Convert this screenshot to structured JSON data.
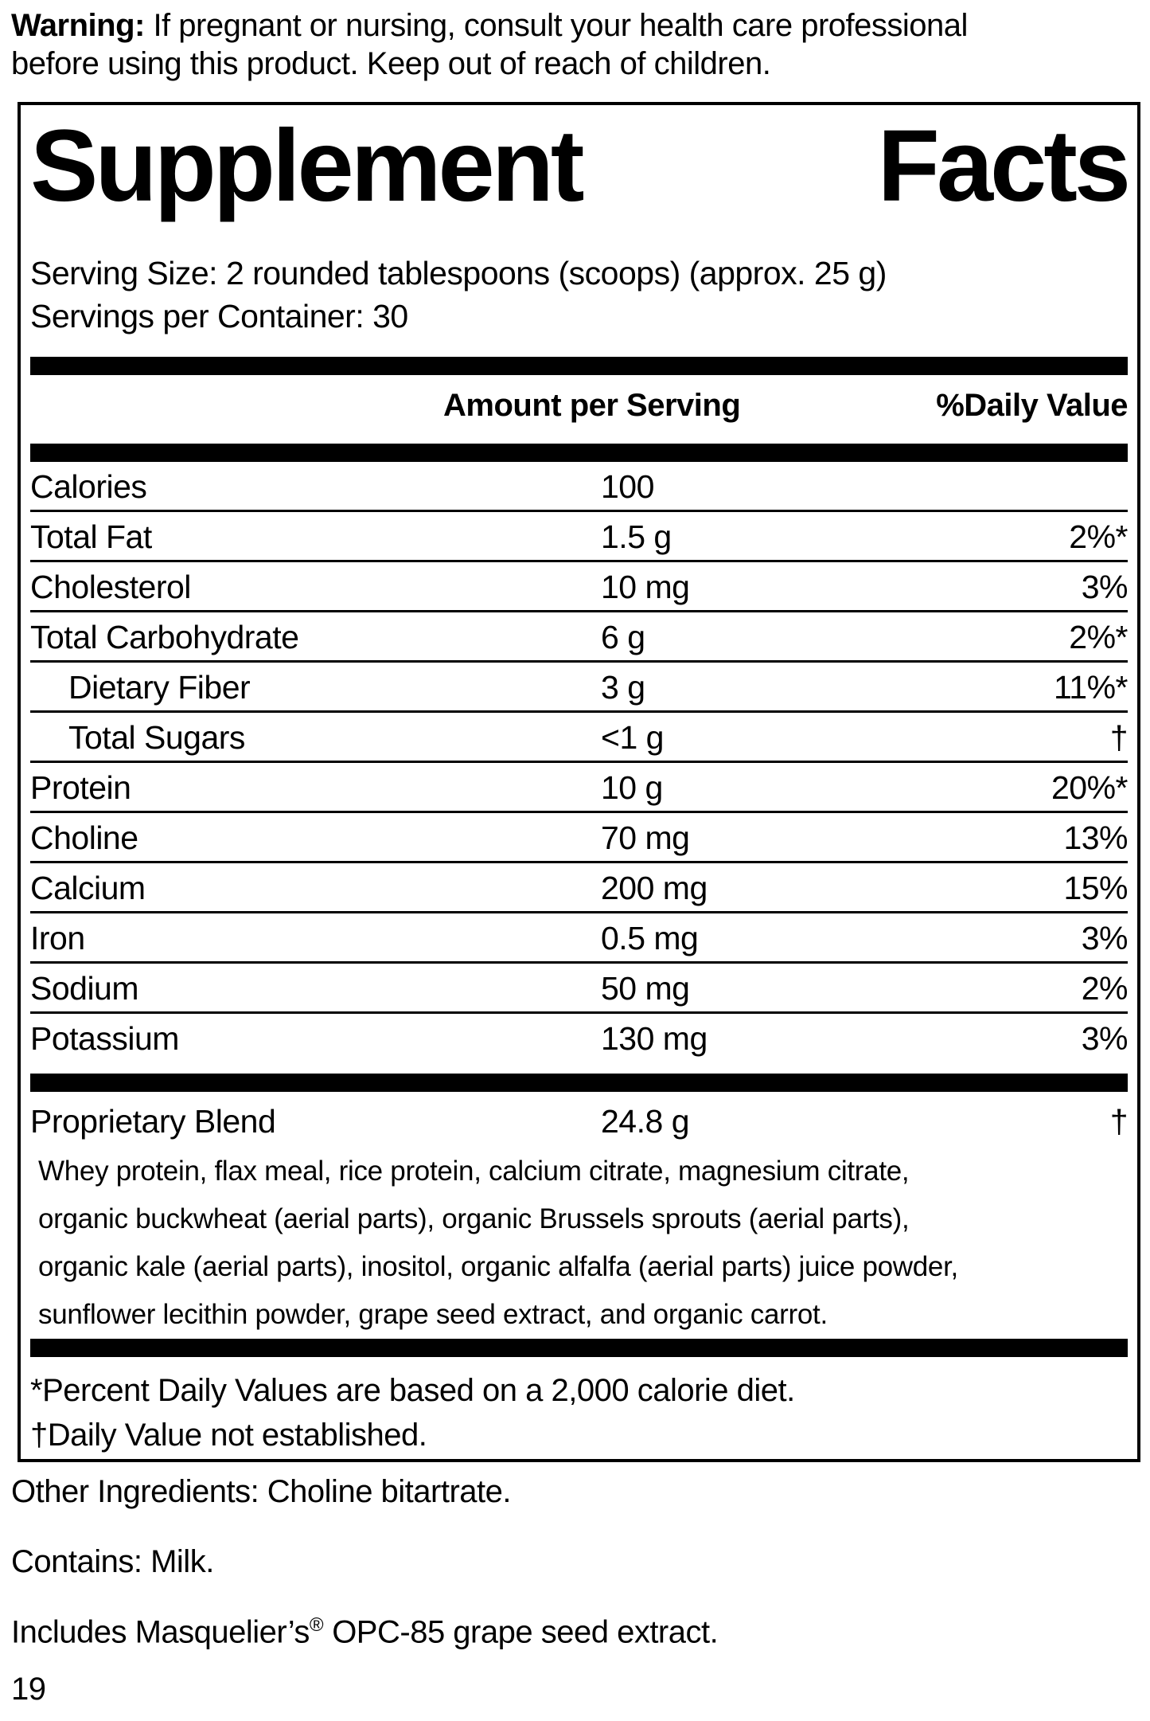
{
  "warning": {
    "bold_label": "Warning:",
    "line1_rest": " If pregnant or nursing, consult your health care professional",
    "line2": "before using this product. Keep out of reach of children."
  },
  "label": {
    "title_left": "Supplement",
    "title_right": "Facts",
    "serving_size": "Serving Size: 2 rounded tablespoons (scoops) (approx. 25 g)",
    "servings_per_container": "Servings per Container: 30",
    "columns": {
      "amount": "Amount per Serving",
      "daily_value": "%Daily Value"
    },
    "rows": [
      {
        "name": "Calories",
        "amount": "100",
        "daily_value": "",
        "indent": false
      },
      {
        "name": "Total Fat",
        "amount": "1.5 g",
        "daily_value": "2%*",
        "indent": false
      },
      {
        "name": "Cholesterol",
        "amount": "10 mg",
        "daily_value": "3%",
        "indent": false
      },
      {
        "name": "Total Carbohydrate",
        "amount": "6 g",
        "daily_value": "2%*",
        "indent": false
      },
      {
        "name": "Dietary Fiber",
        "amount": "3 g",
        "daily_value": "11%*",
        "indent": true
      },
      {
        "name": "Total Sugars",
        "amount": "<1 g",
        "daily_value": "†",
        "indent": true
      },
      {
        "name": "Protein",
        "amount": "10 g",
        "daily_value": "20%*",
        "indent": false
      },
      {
        "name": "Choline",
        "amount": "70 mg",
        "daily_value": "13%",
        "indent": false
      },
      {
        "name": "Calcium",
        "amount": "200 mg",
        "daily_value": "15%",
        "indent": false
      },
      {
        "name": "Iron",
        "amount": "0.5 mg",
        "daily_value": "3%",
        "indent": false
      },
      {
        "name": "Sodium",
        "amount": "50 mg",
        "daily_value": "2%",
        "indent": false
      },
      {
        "name": "Potassium",
        "amount": "130 mg",
        "daily_value": "3%",
        "indent": false
      }
    ],
    "proprietary_blend": {
      "name": "Proprietary Blend",
      "amount": "24.8 g",
      "daily_value": "†",
      "description_lines": [
        "Whey protein, flax meal, rice protein, calcium citrate, magnesium citrate,",
        "organic buckwheat (aerial parts), organic Brussels sprouts (aerial parts),",
        "organic kale (aerial parts), inositol, organic alfalfa (aerial parts) juice powder,",
        "sunflower lecithin powder, grape seed extract, and organic carrot."
      ]
    },
    "footnotes": [
      "*Percent Daily Values are based on a 2,000 calorie diet.",
      "†Daily Value not established."
    ]
  },
  "other_info": {
    "other_ingredients": "Other Ingredients: Choline bitartrate.",
    "contains": "Contains: Milk.",
    "includes_prefix": "Includes Masquelier’s",
    "registered_mark": "®",
    "includes_suffix": " OPC-85 grape seed extract.",
    "page_number": "19"
  },
  "colors": {
    "ink": "#000000",
    "paper": "#ffffff"
  }
}
